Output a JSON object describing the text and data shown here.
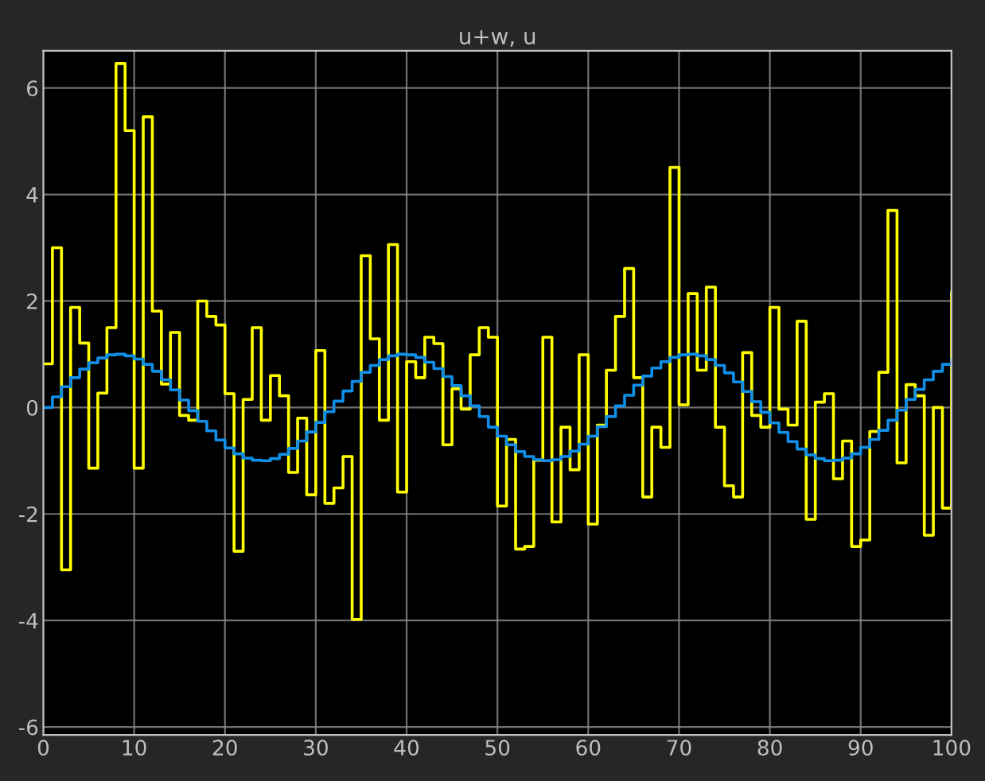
{
  "chart_data": {
    "type": "step",
    "title": "u+w, u",
    "x": [
      0,
      1,
      2,
      3,
      4,
      5,
      6,
      7,
      8,
      9,
      10,
      11,
      12,
      13,
      14,
      15,
      16,
      17,
      18,
      19,
      20,
      21,
      22,
      23,
      24,
      25,
      26,
      27,
      28,
      29,
      30,
      31,
      32,
      33,
      34,
      35,
      36,
      37,
      38,
      39,
      40,
      41,
      42,
      43,
      44,
      45,
      46,
      47,
      48,
      49,
      50,
      51,
      52,
      53,
      54,
      55,
      56,
      57,
      58,
      59,
      60,
      61,
      62,
      63,
      64,
      65,
      66,
      67,
      68,
      69,
      70,
      71,
      72,
      73,
      74,
      75,
      76,
      77,
      78,
      79,
      80,
      81,
      82,
      83,
      84,
      85,
      86,
      87,
      88,
      89,
      90,
      91,
      92,
      93,
      94,
      95,
      96,
      97,
      98,
      99,
      100
    ],
    "series": [
      {
        "color": "#ffff00",
        "values": [
          0.82,
          3.0,
          -3.05,
          1.88,
          1.21,
          -1.14,
          0.27,
          1.5,
          6.46,
          5.2,
          -1.14,
          5.46,
          1.81,
          0.44,
          1.41,
          -0.15,
          -0.24,
          2.0,
          1.71,
          1.55,
          0.26,
          -2.7,
          0.15,
          1.5,
          -0.24,
          0.6,
          0.22,
          -1.22,
          -0.2,
          -1.64,
          1.07,
          -1.8,
          -1.51,
          -0.92,
          -3.98,
          2.85,
          1.29,
          -0.24,
          3.06,
          -1.59,
          0.86,
          0.56,
          1.32,
          1.2,
          -0.7,
          0.35,
          -0.03,
          0.99,
          1.5,
          1.32,
          -1.85,
          -0.6,
          -2.66,
          -2.61,
          -0.99,
          1.32,
          -2.15,
          -0.37,
          -1.17,
          0.99,
          -2.19,
          -0.33,
          0.7,
          1.71,
          2.61,
          0.56,
          -1.68,
          -0.37,
          -0.75,
          4.51,
          0.05,
          2.14,
          0.7,
          2.26,
          -0.37,
          -1.47,
          -1.68,
          1.03,
          -0.15,
          -0.37,
          1.88,
          -0.03,
          -0.33,
          1.62,
          -2.1,
          0.1,
          0.26,
          -1.34,
          -0.63,
          -2.61,
          -2.49,
          -0.45,
          0.66,
          3.7,
          -1.04,
          0.43,
          0.22,
          -2.4,
          0.0,
          -1.89,
          2.17
        ]
      },
      {
        "color": "#0f8fe8",
        "values": [
          0,
          0.2,
          0.39,
          0.56,
          0.72,
          0.84,
          0.93,
          0.99,
          1.0,
          0.97,
          0.91,
          0.81,
          0.68,
          0.52,
          0.33,
          0.14,
          -0.06,
          -0.26,
          -0.44,
          -0.61,
          -0.76,
          -0.87,
          -0.95,
          -0.99,
          -1.0,
          -0.96,
          -0.88,
          -0.77,
          -0.63,
          -0.46,
          -0.28,
          -0.08,
          0.12,
          0.31,
          0.49,
          0.66,
          0.79,
          0.9,
          0.97,
          1.0,
          0.99,
          0.94,
          0.85,
          0.73,
          0.58,
          0.41,
          0.22,
          0.03,
          -0.17,
          -0.37,
          -0.54,
          -0.7,
          -0.83,
          -0.92,
          -0.98,
          -1.0,
          -0.98,
          -0.92,
          -0.82,
          -0.69,
          -0.54,
          -0.36,
          -0.17,
          0.03,
          0.23,
          0.42,
          0.59,
          0.74,
          0.86,
          0.94,
          0.99,
          1.0,
          0.97,
          0.9,
          0.79,
          0.65,
          0.48,
          0.3,
          0.11,
          -0.09,
          -0.29,
          -0.47,
          -0.64,
          -0.78,
          -0.89,
          -0.96,
          -1.0,
          -0.99,
          -0.95,
          -0.87,
          -0.75,
          -0.6,
          -0.43,
          -0.24,
          -0.05,
          0.15,
          0.34,
          0.52,
          0.68,
          0.81,
          0.91
        ]
      }
    ],
    "xlim": [
      0,
      100
    ],
    "xticks": [
      0,
      10,
      20,
      30,
      40,
      50,
      60,
      70,
      80,
      90,
      100
    ],
    "ylim": [
      -6.15,
      6.7
    ],
    "yticks": [
      -6,
      -4,
      -2,
      0,
      2,
      4,
      6
    ],
    "grid": true,
    "line_style": "solid"
  }
}
